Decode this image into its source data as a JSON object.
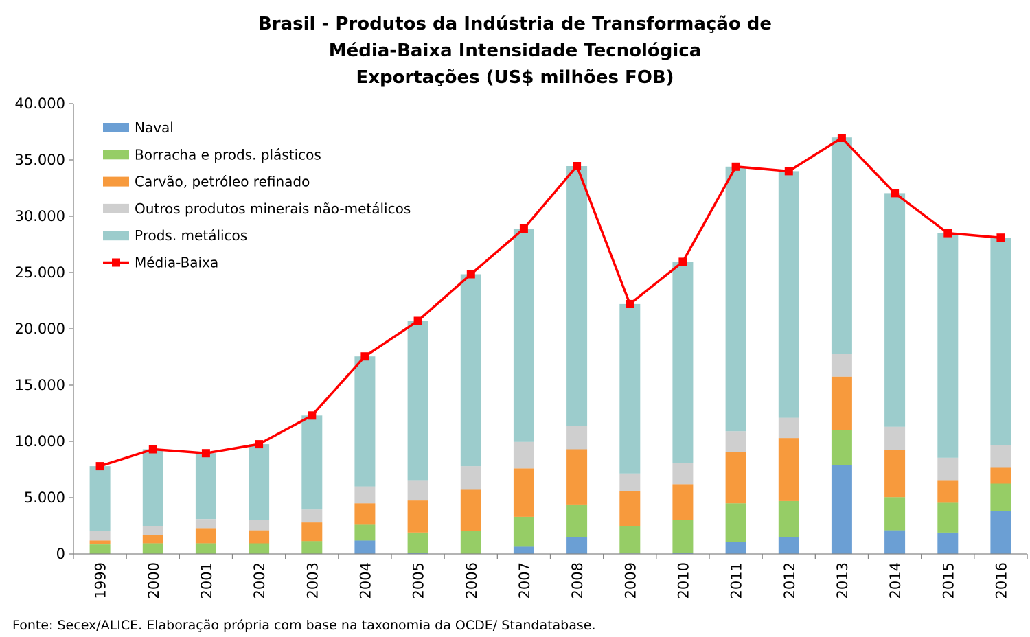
{
  "chart_data": {
    "type": "bar",
    "stacked": true,
    "title_lines": [
      "Brasil - Produtos da Indústria de Transformação de",
      "Média-Baixa Intensidade Tecnológica",
      "Exportações (US$ milhões FOB)"
    ],
    "categories": [
      "1999",
      "2000",
      "2001",
      "2002",
      "2003",
      "2004",
      "2005",
      "2006",
      "2007",
      "2008",
      "2009",
      "2010",
      "2011",
      "2012",
      "2013",
      "2014",
      "2015",
      "2016"
    ],
    "ylim": [
      0,
      40000
    ],
    "yticks": [
      0,
      5000,
      10000,
      15000,
      20000,
      25000,
      30000,
      35000,
      40000
    ],
    "ytick_labels": [
      "0",
      "5.000",
      "10.000",
      "15.000",
      "20.000",
      "25.000",
      "30.000",
      "35.000",
      "40.000"
    ],
    "grid": false,
    "legend_position": "top-left",
    "series": [
      {
        "name": "Naval",
        "kind": "bar",
        "color": "#6b9fd4",
        "values": [
          0,
          0,
          0,
          0,
          0,
          1200,
          100,
          0,
          650,
          1500,
          50,
          100,
          1100,
          1500,
          7900,
          2100,
          1900,
          3800
        ]
      },
      {
        "name": "Borracha e prods. plásticos",
        "kind": "bar",
        "color": "#96cd66",
        "values": [
          850,
          950,
          950,
          950,
          1150,
          1400,
          1800,
          2050,
          2650,
          2900,
          2400,
          2950,
          3400,
          3200,
          3100,
          2950,
          2650,
          2450
        ]
      },
      {
        "name": "Carvão, petróleo refinado",
        "kind": "bar",
        "color": "#f79a3d",
        "values": [
          350,
          700,
          1350,
          1150,
          1650,
          1900,
          2850,
          3650,
          4300,
          4900,
          3150,
          3150,
          4550,
          5600,
          4750,
          4200,
          1950,
          1400
        ]
      },
      {
        "name": "Outros produtos minerais não-metálicos",
        "kind": "bar",
        "color": "#cfcfcf",
        "values": [
          850,
          850,
          800,
          950,
          1150,
          1500,
          1750,
          2100,
          2350,
          2050,
          1550,
          1850,
          1850,
          1800,
          2000,
          2050,
          2050,
          2050
        ]
      },
      {
        "name": "Prods. metálicos",
        "kind": "bar",
        "color": "#9ccccc",
        "values": [
          5750,
          6800,
          5850,
          6700,
          8350,
          11550,
          14200,
          17050,
          18950,
          23100,
          15050,
          17900,
          23500,
          21900,
          19250,
          20750,
          19950,
          18400
        ]
      },
      {
        "name": "Média-Baixa",
        "kind": "line",
        "color": "#ff0000",
        "values": [
          7800,
          9300,
          8950,
          9750,
          12300,
          17550,
          20700,
          24850,
          28900,
          34450,
          22200,
          25950,
          34400,
          34000,
          36950,
          32050,
          28500,
          28100
        ]
      }
    ]
  },
  "source": "Fonte: Secex/ALICE. Elaboração própria com base na taxonomia da OCDE/ Standatabase."
}
